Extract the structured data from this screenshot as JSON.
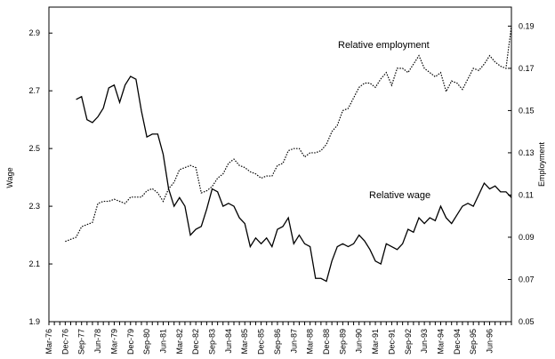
{
  "chart_data": {
    "type": "line",
    "y_label": "Wage",
    "y2_label": "Employment",
    "annotations": [
      "Relative employment",
      "Relative wage"
    ],
    "categories": [
      "Mar-76",
      null,
      null,
      "Dec-76",
      null,
      null,
      "Sep-77",
      null,
      null,
      "Jun-78",
      null,
      null,
      "Mar-79",
      null,
      null,
      "Dec-79",
      null,
      null,
      "Sep-80",
      null,
      null,
      "Jun-81",
      null,
      null,
      "Mar-82",
      null,
      null,
      "Dec-82",
      null,
      null,
      "Sep-83",
      null,
      null,
      "Jun-84",
      null,
      null,
      "Mar-85",
      null,
      null,
      "Dec-85",
      null,
      null,
      "Sep-86",
      null,
      null,
      "Jun-87",
      null,
      null,
      "Mar-88",
      null,
      null,
      "Dec-88",
      null,
      null,
      "Sep-89",
      null,
      null,
      "Jun-90",
      null,
      null,
      "Mar-91",
      null,
      null,
      "Dec-91",
      null,
      null,
      "Sep-92",
      null,
      null,
      "Jun-93",
      null,
      null,
      "Mar-94",
      null,
      null,
      "Dec-94",
      null,
      null,
      "Sep-95",
      null,
      null,
      "Jun-96",
      null,
      null,
      null,
      null
    ],
    "series": [
      {
        "name": "Relative wage",
        "color": "#000000",
        "style": "solid",
        "axis": "y",
        "values": [
          null,
          null,
          null,
          null,
          null,
          2.67,
          2.68,
          2.6,
          2.59,
          2.61,
          2.64,
          2.71,
          2.72,
          2.66,
          2.72,
          2.75,
          2.74,
          2.63,
          2.54,
          2.55,
          2.55,
          2.48,
          2.36,
          2.3,
          2.33,
          2.3,
          2.2,
          2.22,
          2.23,
          2.29,
          2.36,
          2.35,
          2.3,
          2.31,
          2.3,
          2.26,
          2.24,
          2.16,
          2.19,
          2.17,
          2.19,
          2.16,
          2.22,
          2.23,
          2.26,
          2.17,
          2.2,
          2.17,
          2.16,
          2.05,
          2.05,
          2.04,
          2.11,
          2.16,
          2.17,
          2.16,
          2.17,
          2.2,
          2.18,
          2.15,
          2.11,
          2.1,
          2.17,
          2.16,
          2.15,
          2.17,
          2.22,
          2.21,
          2.26,
          2.24,
          2.26,
          2.25,
          2.3,
          2.26,
          2.24,
          2.27,
          2.3,
          2.31,
          2.3,
          2.34,
          2.38,
          2.36,
          2.37,
          2.35,
          2.35,
          2.33
        ]
      },
      {
        "name": "Relative employment",
        "color": "#000000",
        "style": "dotted",
        "axis": "y2",
        "values": [
          null,
          null,
          null,
          0.088,
          0.089,
          0.09,
          0.095,
          0.096,
          0.097,
          0.106,
          0.107,
          0.107,
          0.108,
          0.107,
          0.106,
          0.109,
          0.109,
          0.109,
          0.112,
          0.113,
          0.111,
          0.107,
          0.113,
          0.116,
          0.122,
          0.123,
          0.124,
          0.123,
          0.111,
          0.112,
          0.114,
          0.118,
          0.12,
          0.125,
          0.127,
          0.124,
          0.123,
          0.121,
          0.12,
          0.118,
          0.119,
          0.119,
          0.124,
          0.125,
          0.131,
          0.132,
          0.132,
          0.128,
          0.13,
          0.13,
          0.131,
          0.134,
          0.14,
          0.143,
          0.15,
          0.151,
          0.156,
          0.161,
          0.163,
          0.163,
          0.161,
          0.165,
          0.168,
          0.162,
          0.17,
          0.17,
          0.168,
          0.172,
          0.176,
          0.17,
          0.168,
          0.166,
          0.168,
          0.159,
          0.164,
          0.163,
          0.16,
          0.165,
          0.17,
          0.169,
          0.172,
          0.176,
          0.173,
          0.171,
          0.17,
          0.19
        ]
      }
    ],
    "ylim": [
      1.9,
      2.99
    ],
    "yticks": [
      1.9,
      2.1,
      2.3,
      2.5,
      2.7,
      2.9
    ],
    "y2lim": [
      0.05,
      0.199
    ],
    "y2ticks": [
      0.05,
      0.07,
      0.09,
      0.11,
      0.13,
      0.15,
      0.17,
      0.19
    ],
    "grid": false
  }
}
